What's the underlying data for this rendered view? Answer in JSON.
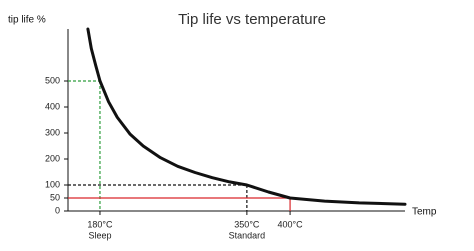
{
  "chart_data": {
    "type": "line",
    "title": "Tip life vs temperature",
    "y_label": "tip life %",
    "x_label": "Temp",
    "xlim": [
      143,
      533
    ],
    "ylim": [
      0,
      700
    ],
    "yticks": [
      0,
      50,
      100,
      200,
      300,
      400,
      500
    ],
    "series": [
      {
        "color": "#111111",
        "x": [
          166,
          170,
          175,
          180,
          190,
          200,
          215,
          230,
          250,
          270,
          290,
          310,
          330,
          350,
          375,
          400,
          440,
          480,
          533
        ],
        "values": [
          700,
          625,
          560,
          500,
          420,
          360,
          295,
          250,
          205,
          172,
          148,
          128,
          112,
          100,
          73,
          50,
          38,
          31,
          26
        ]
      }
    ],
    "markers": [
      {
        "x": 180,
        "y": 500,
        "label": "180°C",
        "sublabel": "Sleep",
        "color": "#2e9e3e",
        "dashed": true
      },
      {
        "x": 350,
        "y": 100,
        "label": "350°C",
        "sublabel": "Standard",
        "color": "#111111",
        "dashed": true
      },
      {
        "x": 400,
        "y": 50,
        "label": "400°C",
        "color": "#d9262a",
        "dashed": false
      }
    ]
  }
}
